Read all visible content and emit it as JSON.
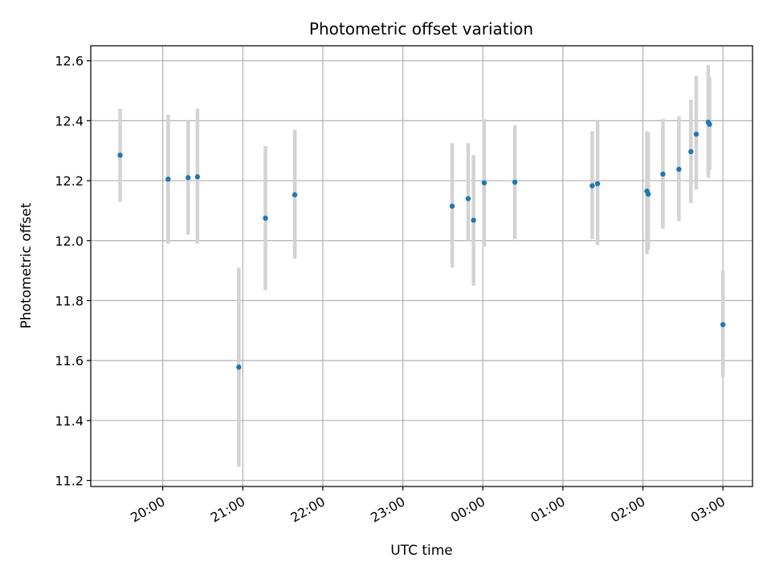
{
  "chart_data": {
    "type": "scatter",
    "title": "Photometric offset variation",
    "xlabel": "UTC time",
    "ylabel": "Photometric offset",
    "x_tick_labels": [
      "20:00",
      "21:00",
      "22:00",
      "23:00",
      "00:00",
      "01:00",
      "02:00",
      "03:00"
    ],
    "y_tick_labels": [
      "11.2",
      "11.4",
      "11.6",
      "11.8",
      "12.0",
      "12.2",
      "12.4",
      "12.6"
    ],
    "x_range_hours": [
      19.1,
      27.37
    ],
    "ylim": [
      11.18,
      12.65
    ],
    "grid": true,
    "colors": {
      "point": "#1f77b4",
      "errorbar": "#d3d3d3",
      "grid": "#b0b0b0",
      "axes": "#000000"
    },
    "series": [
      {
        "points": [
          {
            "time": "19:28",
            "value": 12.285,
            "low": 12.13,
            "high": 12.44
          },
          {
            "time": "20:04",
            "value": 12.205,
            "low": 11.99,
            "high": 12.42
          },
          {
            "time": "20:19",
            "value": 12.21,
            "low": 12.02,
            "high": 12.4
          },
          {
            "time": "20:26",
            "value": 12.213,
            "low": 11.99,
            "high": 12.44
          },
          {
            "time": "20:57",
            "value": 11.578,
            "low": 11.245,
            "high": 11.91
          },
          {
            "time": "21:17",
            "value": 12.075,
            "low": 11.835,
            "high": 12.315
          },
          {
            "time": "21:39",
            "value": 12.153,
            "low": 11.94,
            "high": 12.37
          },
          {
            "time": "23:37",
            "value": 12.115,
            "low": 11.91,
            "high": 12.325
          },
          {
            "time": "23:49",
            "value": 12.14,
            "low": 12.0,
            "high": 12.325
          },
          {
            "time": "23:53",
            "value": 12.068,
            "low": 11.85,
            "high": 12.285
          },
          {
            "time": "00:01",
            "value": 12.193,
            "low": 11.98,
            "high": 12.405
          },
          {
            "time": "00:24",
            "value": 12.195,
            "low": 12.005,
            "high": 12.385
          },
          {
            "time": "01:22",
            "value": 12.183,
            "low": 12.005,
            "high": 12.365
          },
          {
            "time": "01:26",
            "value": 12.19,
            "low": 11.985,
            "high": 12.4
          },
          {
            "time": "02:03",
            "value": 12.165,
            "low": 11.955,
            "high": 12.365
          },
          {
            "time": "02:04",
            "value": 12.155,
            "low": 11.97,
            "high": 12.36
          },
          {
            "time": "02:15",
            "value": 12.222,
            "low": 12.04,
            "high": 12.405
          },
          {
            "time": "02:27",
            "value": 12.238,
            "low": 12.065,
            "high": 12.415
          },
          {
            "time": "02:36",
            "value": 12.297,
            "low": 12.125,
            "high": 12.47
          },
          {
            "time": "02:40",
            "value": 12.355,
            "low": 12.17,
            "high": 12.55
          },
          {
            "time": "02:49",
            "value": 12.395,
            "low": 12.21,
            "high": 12.585
          },
          {
            "time": "02:50",
            "value": 12.388,
            "low": 12.235,
            "high": 12.545
          },
          {
            "time": "03:00",
            "value": 11.72,
            "low": 11.545,
            "high": 11.9
          }
        ]
      }
    ]
  }
}
